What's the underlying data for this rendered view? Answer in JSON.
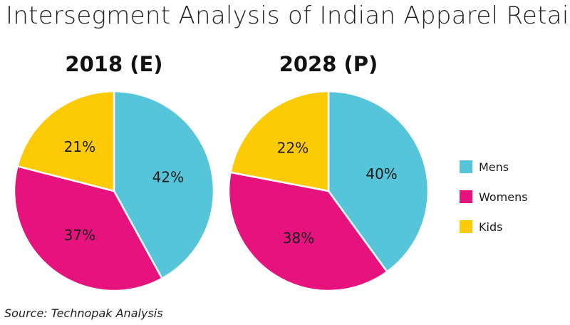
{
  "title": "Intersegment Analysis of Indian Apparel Retail",
  "source": "Source: Technopak Analysis",
  "colors": {
    "Mens": "#56C5DA",
    "Womens": "#E6137F",
    "Kids": "#FDCB05"
  },
  "chart_data": [
    {
      "type": "pie",
      "title": "2018 (E)",
      "categories": [
        "Mens",
        "Womens",
        "Kids"
      ],
      "values": [
        42,
        37,
        21
      ],
      "labels": [
        "42%",
        "37%",
        "21%"
      ]
    },
    {
      "type": "pie",
      "title": "2028 (P)",
      "categories": [
        "Mens",
        "Womens",
        "Kids"
      ],
      "values": [
        40,
        38,
        22
      ],
      "labels": [
        "40%",
        "38%",
        "22%"
      ]
    }
  ],
  "legend": [
    "Mens",
    "Womens",
    "Kids"
  ]
}
